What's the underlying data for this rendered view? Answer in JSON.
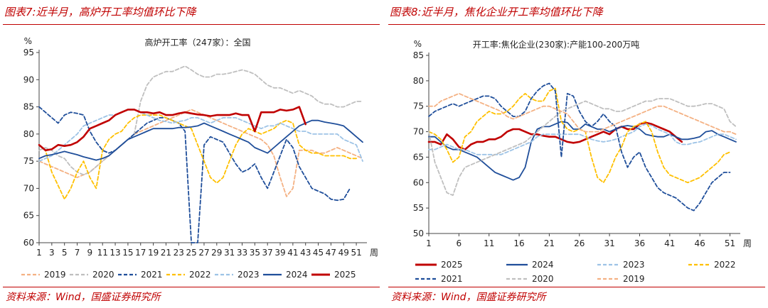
{
  "left": {
    "figure_title": "图表7:近半月，高炉开工率均值环比下降",
    "source": "资料来源：Wind，国盛证券研究所",
    "chart_data": {
      "type": "line",
      "title": "高炉开工率（247家）：全国",
      "ylabel": "%",
      "xlabel": "周",
      "ylim": [
        60,
        95
      ],
      "yticks": [
        60,
        65,
        70,
        75,
        80,
        85,
        90,
        95
      ],
      "xlim": [
        1,
        52
      ],
      "xticks": [
        1,
        3,
        5,
        7,
        9,
        11,
        13,
        15,
        17,
        19,
        21,
        23,
        25,
        27,
        29,
        31,
        33,
        35,
        37,
        39,
        41,
        43,
        45,
        47,
        49,
        51
      ],
      "legend_position": "bottom",
      "series": [
        {
          "name": "2019",
          "color": "#f4b183",
          "style": "dash",
          "values": [
            75,
            74.5,
            74,
            73.5,
            73,
            72.5,
            72,
            72.5,
            73,
            74,
            75,
            76,
            77,
            78,
            79,
            80,
            80.5,
            81,
            81.5,
            82,
            82.5,
            83,
            83.5,
            84,
            84.5,
            84,
            83.5,
            83,
            82.5,
            82,
            81.5,
            81,
            80.5,
            80,
            79.5,
            79,
            78,
            76,
            72,
            68.5,
            70,
            77,
            77,
            77,
            76.5,
            76.5,
            77,
            77.5,
            77,
            76.5,
            76,
            75.5
          ]
        },
        {
          "name": "2020",
          "color": "#bfbfbf",
          "style": "dash",
          "values": [
            77,
            77.5,
            77,
            76,
            75.5,
            74,
            73,
            72.5,
            73,
            74,
            75,
            76,
            77,
            78,
            79,
            80,
            86,
            89,
            90.5,
            91,
            91.5,
            91.5,
            92,
            92.5,
            91.8,
            91,
            90.5,
            90.5,
            91,
            91,
            91.2,
            91.5,
            91.8,
            91.5,
            91,
            90,
            89,
            88.5,
            88.5,
            88,
            87.5,
            88,
            87.5,
            87,
            86,
            85.5,
            85.5,
            85,
            85,
            85.5,
            86,
            86
          ]
        },
        {
          "name": "2021",
          "color": "#1f4e9a",
          "style": "dash",
          "values": [
            85,
            84,
            83,
            82,
            83.5,
            84,
            83.8,
            83.5,
            80.5,
            78.5,
            77,
            76.5,
            77,
            78,
            79,
            80,
            81,
            82,
            82.5,
            83,
            83,
            82.5,
            82,
            80.5,
            60,
            60,
            78,
            79.5,
            79,
            78.5,
            76.5,
            74.5,
            73,
            73.5,
            74.5,
            72,
            70,
            73,
            76,
            79,
            77.5,
            74,
            72,
            70,
            69.5,
            69,
            68,
            67.8,
            68,
            70,
            null,
            null
          ]
        },
        {
          "name": "2022",
          "color": "#ffc000",
          "style": "dash",
          "values": [
            78,
            77,
            73,
            70.5,
            68,
            70,
            73,
            75,
            72,
            70,
            77,
            79,
            80,
            80.5,
            82,
            83,
            83.5,
            83.5,
            83.5,
            83.5,
            83,
            82.5,
            82,
            81.5,
            81,
            78,
            75,
            72,
            71,
            72,
            75,
            78,
            80,
            81,
            80.5,
            80,
            80.5,
            81,
            82,
            82.5,
            82,
            78,
            77,
            76.5,
            76.5,
            76,
            76,
            76,
            76,
            75.5,
            75.5,
            null
          ]
        },
        {
          "name": "2023",
          "color": "#9dc3e6",
          "style": "dash",
          "values": [
            75,
            75.5,
            76,
            77,
            78,
            79,
            80,
            81.5,
            82,
            82.5,
            83,
            83.5,
            83.5,
            84,
            84.5,
            84.5,
            84,
            83.5,
            83,
            82.5,
            82.3,
            82,
            82.3,
            82.5,
            83,
            83,
            82.5,
            82,
            82.5,
            83,
            83,
            83,
            82.5,
            82,
            81.5,
            81,
            81.5,
            81.5,
            82,
            81.5,
            81,
            80.5,
            80.5,
            80,
            80,
            80,
            80,
            80,
            79,
            78.5,
            78,
            75
          ]
        },
        {
          "name": "2024",
          "color": "#1f4e9a",
          "style": "solid",
          "values": [
            75.5,
            76,
            76.2,
            76.5,
            76.8,
            76.5,
            76.2,
            75.8,
            75.5,
            75.2,
            75.5,
            76,
            77,
            78,
            79,
            79.5,
            80,
            80.5,
            81,
            81,
            81,
            81,
            81.2,
            81.2,
            81.3,
            81.5,
            82,
            81.5,
            81,
            80.5,
            80,
            79.5,
            79,
            78.5,
            77.5,
            77,
            76.5,
            77.5,
            78.5,
            79.5,
            80.5,
            81.5,
            82,
            82.5,
            82.5,
            82.2,
            82,
            81.8,
            81.5,
            80.5,
            79.5,
            78.5
          ]
        },
        {
          "name": "2025",
          "color": "#c00000",
          "style": "solid",
          "values": [
            78,
            77,
            77.2,
            78,
            77.8,
            78,
            78.5,
            79.5,
            81,
            81.5,
            82,
            82.5,
            83.5,
            84,
            84.5,
            84.5,
            84,
            84,
            83.8,
            84,
            83.5,
            83.5,
            83.8,
            84,
            83.8,
            83.6,
            83.5,
            83.3,
            83.5,
            83.5,
            83.5,
            83.8,
            83.5,
            83.5,
            80.5,
            84,
            84,
            84,
            84.5,
            84.3,
            84.5,
            85,
            81.8,
            null,
            null,
            null,
            null,
            null,
            null,
            null,
            null,
            null
          ]
        }
      ]
    }
  },
  "right": {
    "figure_title": "图表8:近半月，焦化企业开工率均值环比下降",
    "source": "资料来源：Wind，国盛证券研究所",
    "chart_data": {
      "type": "line",
      "title": "开工率:焦化企业(230家):产能100-200万吨",
      "ylabel": "%",
      "xlabel": "周",
      "ylim": [
        50,
        85
      ],
      "yticks": [
        50,
        55,
        60,
        65,
        70,
        75,
        80,
        85
      ],
      "xlim": [
        1,
        52
      ],
      "xticks": [
        1,
        6,
        11,
        16,
        21,
        26,
        31,
        36,
        41,
        46,
        51
      ],
      "legend_position": "bottom",
      "series": [
        {
          "name": "2025",
          "color": "#c00000",
          "style": "solid",
          "values": [
            68,
            68,
            67.5,
            69.5,
            68.5,
            67,
            66.5,
            67.5,
            68,
            68,
            68.5,
            68.5,
            69,
            70,
            70.5,
            70.5,
            70,
            69.5,
            69.5,
            69.2,
            69,
            69,
            68.5,
            68,
            67.8,
            68,
            68.5,
            69,
            69.5,
            70,
            69.5,
            70.5,
            71,
            70.5,
            70.5,
            71.5,
            71.8,
            71.5,
            71,
            70.5,
            70,
            69,
            68,
            null,
            null,
            null,
            null,
            null,
            null,
            null,
            null,
            null
          ]
        },
        {
          "name": "2024",
          "color": "#1f4e9a",
          "style": "solid",
          "values": [
            69,
            69,
            68,
            67,
            66.5,
            66.5,
            66,
            65.5,
            65,
            64,
            63,
            62,
            61.5,
            61,
            60.5,
            61,
            63,
            68,
            70.5,
            71,
            71,
            71.5,
            72,
            71.8,
            70.5,
            70.5,
            71.5,
            71,
            70.5,
            70.5,
            70,
            70.5,
            71,
            71.2,
            71,
            70.5,
            69.5,
            69.2,
            69,
            69,
            69.5,
            69,
            68.5,
            68.5,
            68.7,
            69,
            70,
            70.2,
            69.5,
            69,
            68.5,
            68
          ]
        },
        {
          "name": "2023",
          "color": "#9dc3e6",
          "style": "dash",
          "values": [
            66.5,
            66.5,
            67,
            67.5,
            67,
            66.5,
            66.5,
            66,
            65.5,
            65.5,
            65.5,
            65.5,
            65.5,
            66,
            66.5,
            67,
            67.5,
            68,
            69,
            69.5,
            69.5,
            69.5,
            69.5,
            69.5,
            69.5,
            69.5,
            69,
            68.5,
            68.2,
            68,
            68.2,
            68.5,
            69,
            69.5,
            70,
            71,
            71.5,
            71.2,
            70.5,
            70,
            69.5,
            68,
            67.5,
            67.5,
            67.8,
            68,
            68.5,
            69,
            69.5,
            69.5,
            69,
            68.5
          ]
        },
        {
          "name": "2022",
          "color": "#ffc000",
          "style": "dash",
          "values": [
            70,
            69.5,
            68.5,
            66.5,
            64,
            65,
            69,
            70,
            72,
            73,
            74,
            73.5,
            73.5,
            74,
            75,
            76.5,
            77.5,
            76.5,
            76,
            76,
            78,
            78.5,
            72,
            70.5,
            70,
            70.5,
            70,
            65,
            61,
            60,
            62,
            65,
            67,
            70,
            71,
            71.5,
            72,
            70,
            66,
            63,
            61.5,
            61,
            60.5,
            60,
            60.5,
            61,
            62,
            63,
            64,
            65.5,
            66,
            null
          ]
        },
        {
          "name": "2021",
          "color": "#1f4e9a",
          "style": "dash",
          "values": [
            73,
            74,
            74.5,
            75,
            75.5,
            75,
            75.5,
            76,
            76.5,
            77,
            77,
            76.5,
            75,
            74,
            73,
            73,
            74,
            76.5,
            78,
            79,
            79.5,
            78,
            65,
            77.5,
            77,
            74,
            72,
            71,
            72,
            73.5,
            72,
            71,
            66,
            63,
            65,
            66,
            63,
            61,
            59,
            58,
            57.5,
            57,
            56,
            55,
            54.5,
            56,
            58,
            60,
            61,
            62,
            62,
            null
          ]
        },
        {
          "name": "2020",
          "color": "#bfbfbf",
          "style": "dash",
          "values": [
            70,
            64,
            61,
            58,
            57.5,
            61,
            63,
            63.5,
            64,
            64.5,
            65,
            65.5,
            66,
            66.5,
            67,
            67.5,
            68,
            69,
            70,
            71,
            72,
            73,
            74,
            74.5,
            75,
            75.5,
            76,
            75.5,
            75,
            74.5,
            74.5,
            74,
            74,
            74.5,
            75,
            75.5,
            76,
            76,
            76.5,
            76.5,
            76.5,
            76,
            75.5,
            75,
            75,
            75.2,
            75.5,
            75.5,
            75,
            74.5,
            72,
            71
          ]
        },
        {
          "name": "2019",
          "color": "#f4b183",
          "style": "dash",
          "values": [
            75,
            75,
            76,
            76.5,
            77,
            77.5,
            77,
            76.5,
            76,
            75.5,
            75,
            74.5,
            74,
            73,
            72.5,
            73,
            73.5,
            74,
            74.5,
            75,
            75,
            74.5,
            74,
            73.5,
            72,
            70.5,
            70,
            70,
            70,
            70.5,
            71,
            71.5,
            72,
            72.5,
            73,
            73.5,
            74,
            74.5,
            75,
            75,
            74.5,
            74,
            73.5,
            73,
            72.5,
            72,
            71.5,
            71,
            70.5,
            70,
            70,
            69.5
          ]
        }
      ],
      "legend_order": [
        "2025",
        "2024",
        "2023",
        "2022",
        "2021",
        "2020",
        "2019"
      ]
    }
  }
}
